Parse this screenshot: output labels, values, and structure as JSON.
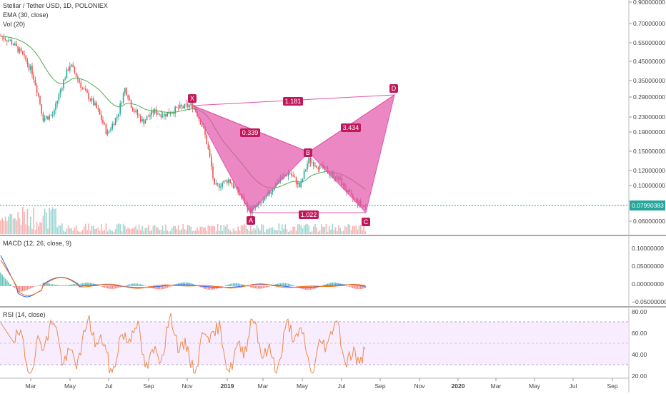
{
  "header": {
    "symbol_line": "Stellar / Tether USD, 1D, POLONIEX",
    "ema_line": "EMA (30, close)",
    "vol_line": "Vol (20)"
  },
  "panes": {
    "macd_label": "MACD (12, 26, close, 9)",
    "rsi_label": "RSI (14, close)"
  },
  "price_axis": {
    "ticks": [
      "0.90000000",
      "0.70000000",
      "0.55000000",
      "0.45000000",
      "0.35000000",
      "0.29000000",
      "0.23000000",
      "0.19000000",
      "0.15000000",
      "0.12000000",
      "0.10000000",
      "0.06000000"
    ],
    "last_price": "0.07990383"
  },
  "macd_axis": {
    "ticks": [
      "0.10000000",
      "0.05000000",
      "0.00000000",
      "−0.05000000"
    ]
  },
  "rsi_axis": {
    "ticks": [
      "80.00",
      "60.00",
      "40.00",
      "20.00"
    ]
  },
  "time_axis": {
    "ticks": [
      "Mar",
      "May",
      "Jul",
      "Sep",
      "Nov",
      "2019",
      "Mar",
      "May",
      "Jul",
      "Sep",
      "Nov",
      "2020",
      "Mar",
      "May",
      "Jul",
      "Sep"
    ]
  },
  "pattern": {
    "points": [
      "X",
      "A",
      "B",
      "C",
      "D"
    ],
    "ratios": {
      "xb": "0.339",
      "bd": "3.434",
      "xd": "1.181",
      "ac": "1.022"
    }
  },
  "colors": {
    "up": "#26a69a",
    "down": "#ef5350",
    "ema": "#4caf50",
    "pattern_fill": "#e254a8",
    "pattern_label": "#c2185b",
    "rsi": "#ef8a4a",
    "rsi_band": "#f3e5ff",
    "macd": "#2962ff",
    "signal": "#ff6d00"
  }
}
